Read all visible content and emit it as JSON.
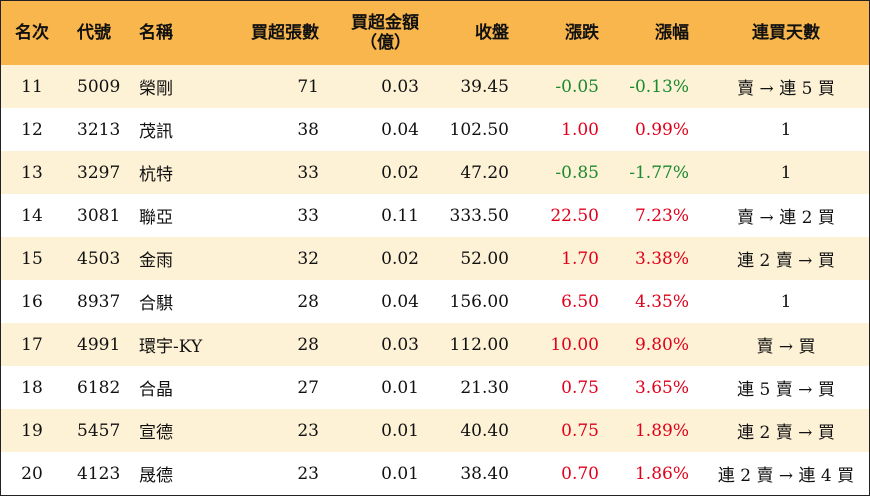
{
  "headers": {
    "rank": "名次",
    "code": "代號",
    "name": "名稱",
    "net_lots": "買超張數",
    "net_amount_line1": "買超金額",
    "net_amount_line2": "（億）",
    "close": "收盤",
    "change": "漲跌",
    "change_pct": "漲幅",
    "streak": "連買天數"
  },
  "rows": [
    {
      "rank": "11",
      "code": "5009",
      "name": "榮剛",
      "net_lots": "71",
      "net_amount": "0.03",
      "close": "39.45",
      "change": "-0.05",
      "change_pct": "-0.13%",
      "direction": "down",
      "streak": "賣 → 連 5 買"
    },
    {
      "rank": "12",
      "code": "3213",
      "name": "茂訊",
      "net_lots": "38",
      "net_amount": "0.04",
      "close": "102.50",
      "change": "1.00",
      "change_pct": "0.99%",
      "direction": "up",
      "streak": "1"
    },
    {
      "rank": "13",
      "code": "3297",
      "name": "杭特",
      "net_lots": "33",
      "net_amount": "0.02",
      "close": "47.20",
      "change": "-0.85",
      "change_pct": "-1.77%",
      "direction": "down",
      "streak": "1"
    },
    {
      "rank": "14",
      "code": "3081",
      "name": "聯亞",
      "net_lots": "33",
      "net_amount": "0.11",
      "close": "333.50",
      "change": "22.50",
      "change_pct": "7.23%",
      "direction": "up",
      "streak": "賣 → 連 2 買"
    },
    {
      "rank": "15",
      "code": "4503",
      "name": "金雨",
      "net_lots": "32",
      "net_amount": "0.02",
      "close": "52.00",
      "change": "1.70",
      "change_pct": "3.38%",
      "direction": "up",
      "streak": "連 2 賣 → 買"
    },
    {
      "rank": "16",
      "code": "8937",
      "name": "合騏",
      "net_lots": "28",
      "net_amount": "0.04",
      "close": "156.00",
      "change": "6.50",
      "change_pct": "4.35%",
      "direction": "up",
      "streak": "1"
    },
    {
      "rank": "17",
      "code": "4991",
      "name": "環宇-KY",
      "net_lots": "28",
      "net_amount": "0.03",
      "close": "112.00",
      "change": "10.00",
      "change_pct": "9.80%",
      "direction": "up",
      "streak": "賣 → 買"
    },
    {
      "rank": "18",
      "code": "6182",
      "name": "合晶",
      "net_lots": "27",
      "net_amount": "0.01",
      "close": "21.30",
      "change": "0.75",
      "change_pct": "3.65%",
      "direction": "up",
      "streak": "連 5 賣 → 買"
    },
    {
      "rank": "19",
      "code": "5457",
      "name": "宣德",
      "net_lots": "23",
      "net_amount": "0.01",
      "close": "40.40",
      "change": "0.75",
      "change_pct": "1.89%",
      "direction": "up",
      "streak": "連 2 賣 → 買"
    },
    {
      "rank": "20",
      "code": "4123",
      "name": "晟德",
      "net_lots": "23",
      "net_amount": "0.01",
      "close": "38.40",
      "change": "0.70",
      "change_pct": "1.86%",
      "direction": "up",
      "streak": "連 2 賣 → 連 4 買"
    }
  ],
  "colors": {
    "header_bg": "#f8b64c",
    "odd_row_bg": "#fdf1d6",
    "up": "#e0001b",
    "down": "#1a8a2e"
  }
}
